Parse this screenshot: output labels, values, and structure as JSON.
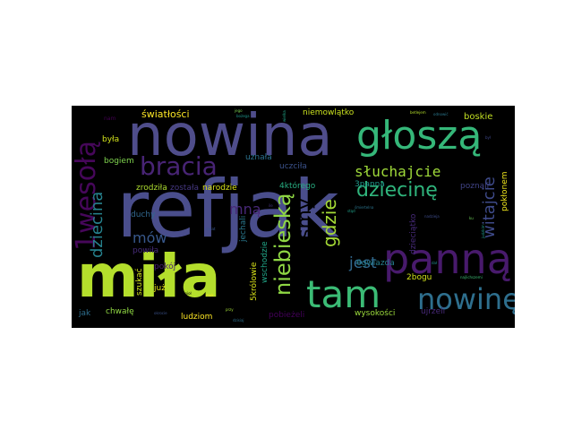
{
  "words": [
    {
      "id": "refjak",
      "text": "refjak",
      "color": "#4a4e8c"
    },
    {
      "id": "nowina",
      "text": "nowina",
      "color": "#4f4d8b"
    },
    {
      "id": "mila",
      "text": "miła",
      "color": "#b4de2c"
    },
    {
      "id": "panna",
      "text": "panną",
      "color": "#481a6c"
    },
    {
      "id": "glosza",
      "text": "głoszą",
      "color": "#35b779"
    },
    {
      "id": "tam",
      "text": "tam",
      "color": "#3bbb75"
    },
    {
      "id": "nowine",
      "text": "nowinę",
      "color": "#2e6f8e"
    },
    {
      "id": "wesola",
      "text": "1wesołą",
      "color": "#46075a"
    },
    {
      "id": "bracia",
      "text": "bracia",
      "color": "#482475"
    },
    {
      "id": "sluchajcie",
      "text": "słuchajcie",
      "color": "#9fda3a"
    },
    {
      "id": "dziecine",
      "text": "dziecinę",
      "color": "#2fb47c"
    },
    {
      "id": "dziecina",
      "text": "dziecina",
      "color": "#26828e"
    },
    {
      "id": "niebieska",
      "text": "niebieską",
      "color": "#8fd744"
    },
    {
      "id": "byśmy",
      "text": "byśmy",
      "color": "#2a788e"
    },
    {
      "id": "gdzie",
      "text": "gdzie",
      "color": "#a5db36"
    },
    {
      "id": "jest",
      "text": "jest",
      "color": "#31688e"
    },
    {
      "id": "mna",
      "text": "mną",
      "color": "#482878"
    },
    {
      "id": "mow",
      "text": "mów",
      "color": "#38588c"
    },
    {
      "id": "witajcie",
      "text": "witajcie",
      "color": "#3e4a89"
    },
    {
      "id": "swiatlosci",
      "text": "światłości",
      "color": "#fde725"
    },
    {
      "id": "niemowlatko",
      "text": "niemowlątko",
      "color": "#cae11f"
    },
    {
      "id": "boskie",
      "text": "boskie",
      "color": "#c2df23"
    },
    {
      "id": "uznala",
      "text": "uznała",
      "color": "#2c728e"
    },
    {
      "id": "uczcila",
      "text": "uczciła",
      "color": "#3b528b"
    },
    {
      "id": "byla",
      "text": "była",
      "color": "#d2e21b"
    },
    {
      "id": "bogiem",
      "text": "bogiem",
      "color": "#7fd34e"
    },
    {
      "id": "zrodzila",
      "text": "zrodziła",
      "color": "#addc30"
    },
    {
      "id": "zostala",
      "text": "została",
      "color": "#453781"
    },
    {
      "id": "narodzie",
      "text": "narodzie",
      "color": "#d8e219"
    },
    {
      "id": "ktorego",
      "text": "4którego",
      "color": "#27ad81"
    },
    {
      "id": "trzypanna",
      "text": "3panna",
      "color": "#1f998a"
    },
    {
      "id": "poznali",
      "text": "poznali",
      "color": "#414487"
    },
    {
      "id": "poklonem",
      "text": "pokłonem",
      "color": "#efe51c"
    },
    {
      "id": "dzieciatko",
      "text": "dzieciątko",
      "color": "#472a7a"
    },
    {
      "id": "duchy",
      "text": "duchy",
      "color": "#31678e"
    },
    {
      "id": "jechali",
      "text": "jechali",
      "color": "#2a788e"
    },
    {
      "id": "powila",
      "text": "powiła",
      "color": "#472c7a"
    },
    {
      "id": "wschodzie",
      "text": "wschodzie",
      "color": "#20a486"
    },
    {
      "id": "krolowie",
      "text": "5królowie",
      "color": "#d8e219"
    },
    {
      "id": "gwiazda",
      "text": "6gwiazda",
      "color": "#277f8e"
    },
    {
      "id": "pokoj",
      "text": "pokój",
      "color": "#482173"
    },
    {
      "id": "szukac",
      "text": "szukać",
      "color": "#d0e11c"
    },
    {
      "id": "juz",
      "text": "już",
      "color": "#e5e419"
    },
    {
      "id": "dwabogu",
      "text": "2bogu",
      "color": "#d2e21b"
    },
    {
      "id": "jak",
      "text": "jak",
      "color": "#2e6e8e"
    },
    {
      "id": "chwale",
      "text": "chwałę",
      "color": "#90d743"
    },
    {
      "id": "ludziom",
      "text": "ludziom",
      "color": "#fde725"
    },
    {
      "id": "pobiezeli",
      "text": "pobieżeli",
      "color": "#44015a"
    },
    {
      "id": "wysokosci",
      "text": "wysokości",
      "color": "#9bd93c"
    },
    {
      "id": "ujrzeli",
      "text": "ujrzeli",
      "color": "#482979"
    },
    {
      "id": "nam",
      "text": "nam",
      "color": "#440154"
    },
    {
      "id": "judzkim",
      "text": "judzkim",
      "color": "#1e9b8a"
    },
    {
      "id": "jego",
      "text": "jego",
      "color": "#7ad151"
    },
    {
      "id": "buzega",
      "text": "bożega",
      "color": "#1f958b"
    },
    {
      "id": "betlejem",
      "text": "betlejem",
      "color": "#b5de2b"
    },
    {
      "id": "odnowic",
      "text": "odnowić",
      "color": "#2a788e"
    },
    {
      "id": "ku",
      "text": "ku",
      "color": "#6ece58"
    },
    {
      "id": "najlichszemi",
      "text": "najlichszemi",
      "color": "#3dbc74"
    },
    {
      "id": "dal",
      "text": "dał",
      "color": "#228c8d"
    },
    {
      "id": "stad",
      "text": "stąd",
      "color": "#1fa088"
    },
    {
      "id": "muk",
      "text": "muk",
      "color": "#fde725"
    },
    {
      "id": "okrocie",
      "text": "okrocie",
      "color": "#3b528b"
    },
    {
      "id": "dzisiaj",
      "text": "dzisiaj",
      "color": "#2d708e"
    },
    {
      "id": "swiat",
      "text": "swiat",
      "color": "#39558c"
    },
    {
      "id": "wielka",
      "text": "wielka",
      "color": "#20a486"
    },
    {
      "id": "smiertelna",
      "text": "śmiertelna",
      "color": "#2b758e"
    },
    {
      "id": "ile",
      "text": "ile",
      "color": "#46337f"
    },
    {
      "id": "przy",
      "text": "przy",
      "color": "#a2da37"
    },
    {
      "id": "nadzieja",
      "text": "nadzieja",
      "color": "#3e4c8a"
    },
    {
      "id": "byl",
      "text": "był",
      "color": "#3f4889"
    },
    {
      "id": "anioł",
      "text": "anioł",
      "color": "#2f6c8e"
    }
  ]
}
